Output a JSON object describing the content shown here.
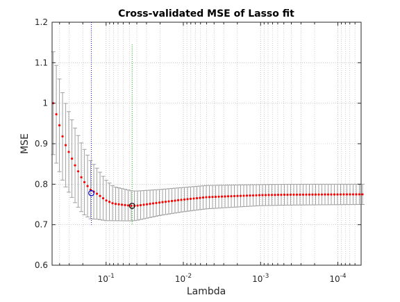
{
  "chart_data": {
    "type": "scatter",
    "title": "Cross-validated MSE of Lasso fit",
    "xlabel": "Lambda",
    "ylabel": "MSE",
    "x_scale": "log",
    "x_reversed": true,
    "xlim": [
      0.5,
      5e-05
    ],
    "ylim": [
      0.6,
      1.2
    ],
    "grid": true,
    "x_ticks": [
      {
        "value": 0.1,
        "base": "10",
        "exp": "-1"
      },
      {
        "value": 0.01,
        "base": "10",
        "exp": "-2"
      },
      {
        "value": 0.001,
        "base": "10",
        "exp": "-3"
      },
      {
        "value": 0.0001,
        "base": "10",
        "exp": "-4"
      }
    ],
    "y_ticks": [
      "0.6",
      "0.7",
      "0.8",
      "0.9",
      "1",
      "1.1",
      "1.2"
    ],
    "lambda_max": 0.484,
    "lambda_min": 4.8e-05,
    "n_points": 100,
    "mse_curve": [
      [
        0.484,
        1.0
      ],
      [
        0.35,
        0.905
      ],
      [
        0.25,
        0.845
      ],
      [
        0.2,
        0.81
      ],
      [
        0.16,
        0.787
      ],
      [
        0.13,
        0.776
      ],
      [
        0.1,
        0.76
      ],
      [
        0.08,
        0.752
      ],
      [
        0.06,
        0.749
      ],
      [
        0.046,
        0.7465
      ],
      [
        0.04,
        0.747
      ],
      [
        0.02,
        0.755
      ],
      [
        0.01,
        0.762
      ],
      [
        0.005,
        0.768
      ],
      [
        0.002,
        0.771
      ],
      [
        0.001,
        0.773
      ],
      [
        0.0005,
        0.774
      ],
      [
        0.0002,
        0.7745
      ],
      [
        4.8e-05,
        0.775
      ]
    ],
    "se_curve": [
      [
        0.484,
        0.127
      ],
      [
        0.35,
        0.105
      ],
      [
        0.2,
        0.083
      ],
      [
        0.1,
        0.05
      ],
      [
        0.08,
        0.042
      ],
      [
        0.046,
        0.037
      ],
      [
        0.02,
        0.032
      ],
      [
        0.01,
        0.03
      ],
      [
        0.001,
        0.026
      ],
      [
        4.8e-05,
        0.025
      ]
    ],
    "markers": [
      {
        "name": "LambdaMinMSE",
        "lambda": 0.046,
        "mse": 0.7465,
        "color": "#00aa00",
        "line_top": 1.145
      },
      {
        "name": "Lambda1SE",
        "lambda": 0.155,
        "mse": 0.778,
        "color": "#0000cc",
        "line_top": 1.2
      }
    ],
    "colors": {
      "points": "#ff0000",
      "errorbars": "#a0a0a0",
      "grid": "#b0b0b0",
      "axes": "#262626"
    }
  }
}
